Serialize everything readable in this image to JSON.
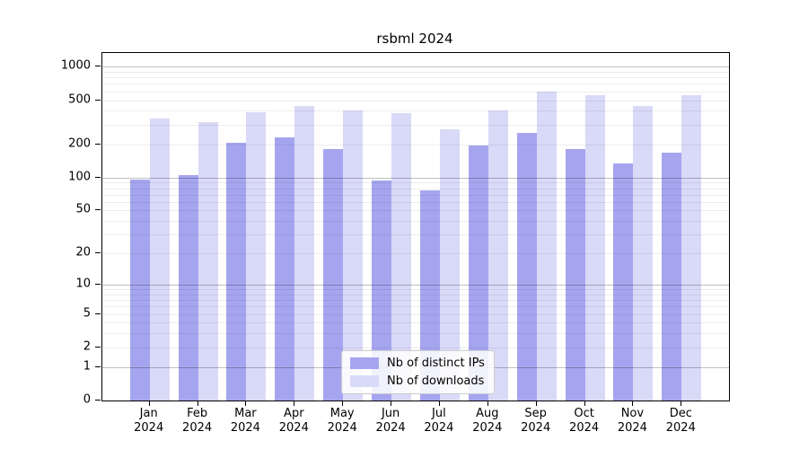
{
  "chart_data": {
    "type": "bar",
    "title": "rsbml 2024",
    "categories": [
      {
        "month": "Jan",
        "year": "2024"
      },
      {
        "month": "Feb",
        "year": "2024"
      },
      {
        "month": "Mar",
        "year": "2024"
      },
      {
        "month": "Apr",
        "year": "2024"
      },
      {
        "month": "May",
        "year": "2024"
      },
      {
        "month": "Jun",
        "year": "2024"
      },
      {
        "month": "Jul",
        "year": "2024"
      },
      {
        "month": "Aug",
        "year": "2024"
      },
      {
        "month": "Sep",
        "year": "2024"
      },
      {
        "month": "Oct",
        "year": "2024"
      },
      {
        "month": "Nov",
        "year": "2024"
      },
      {
        "month": "Dec",
        "year": "2024"
      }
    ],
    "series": [
      {
        "name": "Nb of distinct IPs",
        "color": "#a5a5ef",
        "values": [
          95,
          106,
          206,
          232,
          181,
          94,
          76,
          196,
          252,
          180,
          135,
          167
        ]
      },
      {
        "name": "Nb of downloads",
        "color": "#d9d9f8",
        "values": [
          341,
          318,
          387,
          446,
          404,
          384,
          274,
          401,
          596,
          551,
          446,
          554
        ]
      }
    ],
    "xlabel": "",
    "ylabel": "",
    "y_scale": "log10(1+x)",
    "ylim": [
      0,
      1327
    ],
    "y_ticks": [
      0,
      1,
      2,
      5,
      10,
      20,
      50,
      100,
      200,
      500,
      1000
    ],
    "grid": true,
    "grid_minor_values": [
      2,
      3,
      4,
      5,
      6,
      7,
      8,
      9,
      20,
      30,
      40,
      50,
      60,
      70,
      80,
      90,
      200,
      300,
      400,
      500,
      600,
      700,
      800,
      900
    ],
    "grid_major_values": [
      1,
      10,
      100,
      1000
    ],
    "legend_position": "lower center"
  },
  "style": {
    "axis_color": "#000000",
    "text_color": "#000000",
    "bar_ips_color": "#a5a5ef",
    "bar_downloads_color": "#d9d9f8",
    "legend_border_color": "#cccccc"
  }
}
